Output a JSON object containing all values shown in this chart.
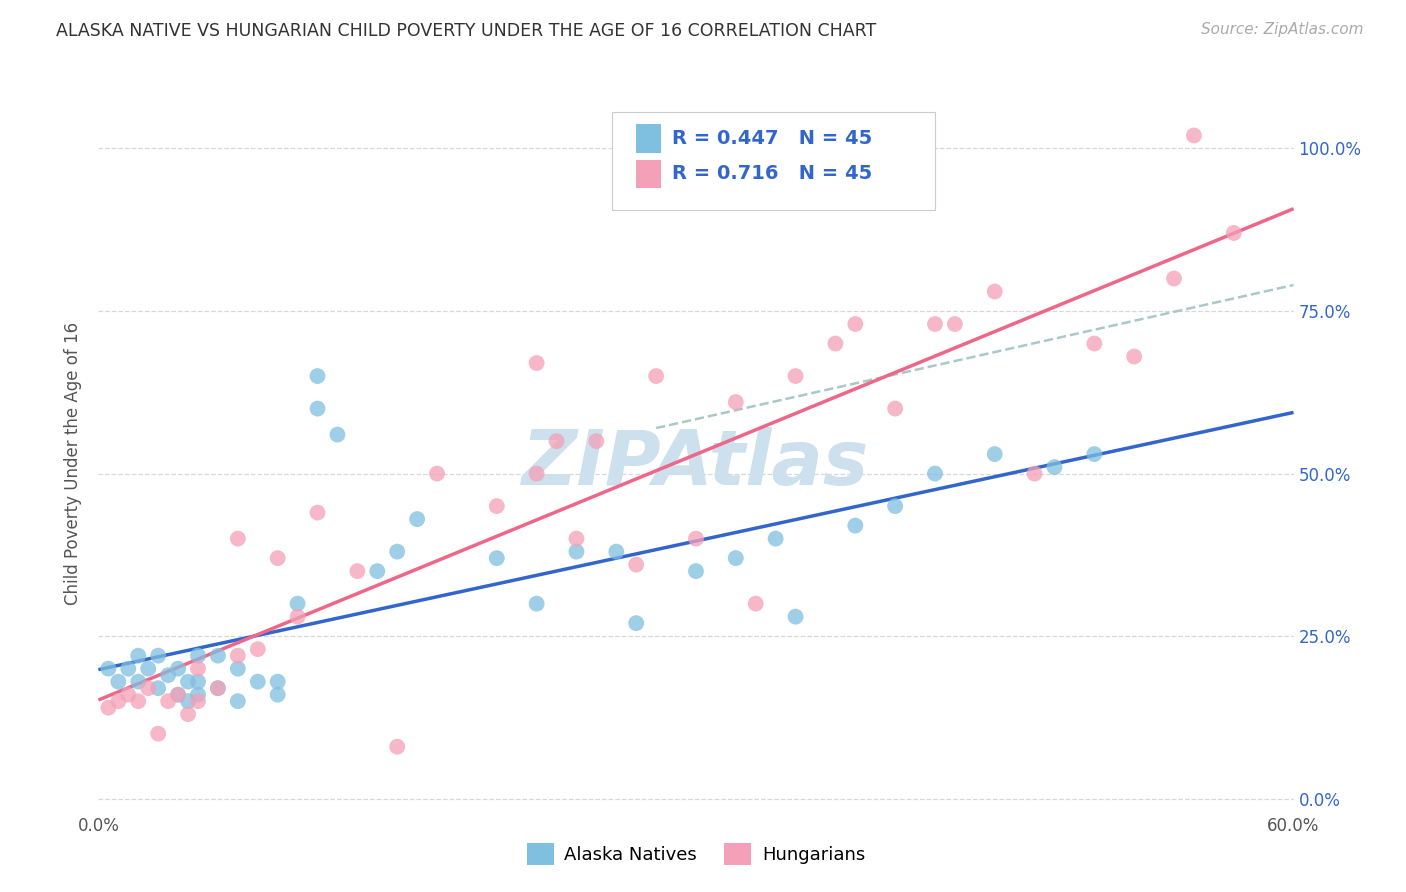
{
  "title": "ALASKA NATIVE VS HUNGARIAN CHILD POVERTY UNDER THE AGE OF 16 CORRELATION CHART",
  "source": "Source: ZipAtlas.com",
  "ylabel": "Child Poverty Under the Age of 16",
  "xlim": [
    0.0,
    0.6
  ],
  "ylim": [
    -0.02,
    1.05
  ],
  "ytick_labels_right": [
    "0.0%",
    "25.0%",
    "50.0%",
    "75.0%",
    "100.0%"
  ],
  "ytick_vals_right": [
    0.0,
    0.25,
    0.5,
    0.75,
    1.0
  ],
  "blue_color": "#7fbfdf",
  "pink_color": "#f4a0b8",
  "blue_line_color": "#3366cc",
  "pink_line_color": "#ee6688",
  "dashed_line_color": "#aac8c8",
  "watermark_text": "ZIPAtlas",
  "watermark_color": "#cce0ee",
  "legend_text_color": "#3366cc",
  "R_alaska": 0.447,
  "N_alaska": 45,
  "R_hungarian": 0.716,
  "N_hungarian": 45,
  "alaska_x": [
    0.005,
    0.01,
    0.015,
    0.02,
    0.02,
    0.025,
    0.03,
    0.03,
    0.035,
    0.04,
    0.04,
    0.045,
    0.045,
    0.05,
    0.05,
    0.05,
    0.06,
    0.06,
    0.07,
    0.07,
    0.08,
    0.09,
    0.09,
    0.1,
    0.11,
    0.11,
    0.12,
    0.14,
    0.15,
    0.16,
    0.2,
    0.22,
    0.24,
    0.26,
    0.27,
    0.3,
    0.32,
    0.34,
    0.35,
    0.38,
    0.4,
    0.42,
    0.45,
    0.48,
    0.5
  ],
  "alaska_y": [
    0.2,
    0.18,
    0.2,
    0.18,
    0.22,
    0.2,
    0.17,
    0.22,
    0.19,
    0.16,
    0.2,
    0.15,
    0.18,
    0.16,
    0.18,
    0.22,
    0.17,
    0.22,
    0.15,
    0.2,
    0.18,
    0.16,
    0.18,
    0.3,
    0.6,
    0.65,
    0.56,
    0.35,
    0.38,
    0.43,
    0.37,
    0.3,
    0.38,
    0.38,
    0.27,
    0.35,
    0.37,
    0.4,
    0.28,
    0.42,
    0.45,
    0.5,
    0.53,
    0.51,
    0.53
  ],
  "hungarian_x": [
    0.005,
    0.01,
    0.015,
    0.02,
    0.025,
    0.03,
    0.035,
    0.04,
    0.045,
    0.05,
    0.05,
    0.06,
    0.07,
    0.07,
    0.08,
    0.09,
    0.1,
    0.11,
    0.13,
    0.15,
    0.17,
    0.2,
    0.22,
    0.23,
    0.24,
    0.25,
    0.27,
    0.28,
    0.3,
    0.32,
    0.33,
    0.35,
    0.37,
    0.38,
    0.4,
    0.42,
    0.43,
    0.45,
    0.47,
    0.5,
    0.52,
    0.54,
    0.55,
    0.57,
    0.22
  ],
  "hungarian_y": [
    0.14,
    0.15,
    0.16,
    0.15,
    0.17,
    0.1,
    0.15,
    0.16,
    0.13,
    0.15,
    0.2,
    0.17,
    0.22,
    0.4,
    0.23,
    0.37,
    0.28,
    0.44,
    0.35,
    0.08,
    0.5,
    0.45,
    0.5,
    0.55,
    0.4,
    0.55,
    0.36,
    0.65,
    0.4,
    0.61,
    0.3,
    0.65,
    0.7,
    0.73,
    0.6,
    0.73,
    0.73,
    0.78,
    0.5,
    0.7,
    0.68,
    0.8,
    1.02,
    0.87,
    0.67
  ],
  "background_color": "#ffffff",
  "grid_color": "#d8d8d8",
  "title_fontsize": 12.5,
  "source_fontsize": 11,
  "axis_label_fontsize": 12,
  "tick_fontsize": 12,
  "legend_fontsize": 14,
  "watermark_fontsize": 55
}
